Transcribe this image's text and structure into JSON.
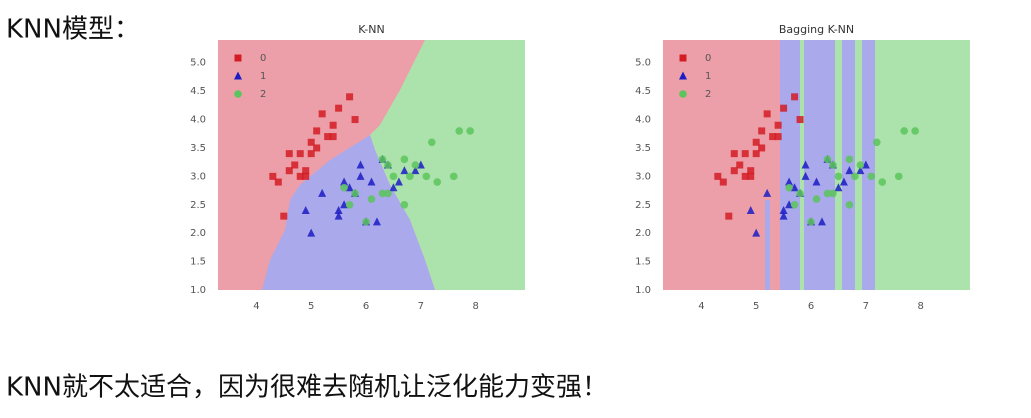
{
  "heading": "KNN模型：",
  "conclusion": "KNN就不太适合，因为很难去随机让泛化能力变强！",
  "chart_data": [
    {
      "type": "scatter",
      "title": "K-NN",
      "legend": "upper left",
      "xlim": [
        3.3,
        8.9
      ],
      "ylim": [
        1.0,
        5.4
      ],
      "xticks": [
        4,
        5,
        6,
        7,
        8
      ],
      "yticks": [
        {
          "value": 1,
          "label": "1.0"
        },
        {
          "value": 1.5,
          "label": "1.5"
        },
        {
          "value": 2,
          "label": "2.0"
        },
        {
          "value": 2.5,
          "label": "2.5"
        },
        {
          "value": 3,
          "label": "3.0"
        },
        {
          "value": 3.5,
          "label": "3.5"
        },
        {
          "value": 4,
          "label": "4.0"
        },
        {
          "value": 4.5,
          "label": "4.5"
        },
        {
          "value": 5,
          "label": "5.0"
        }
      ],
      "series": [
        {
          "name": "0",
          "color": "#d41c24",
          "x": [
            5.1,
            4.9,
            4.7,
            4.6,
            5.0,
            5.4,
            4.6,
            5.0,
            4.4,
            4.9,
            5.4,
            4.8,
            4.8,
            4.3,
            5.8,
            5.7,
            5.2,
            5.5,
            4.5,
            5.3,
            5.1
          ],
          "values": [
            3.5,
            3.0,
            3.2,
            3.1,
            3.6,
            3.9,
            3.4,
            3.4,
            2.9,
            3.1,
            3.7,
            3.4,
            3.0,
            3.0,
            4.0,
            4.4,
            4.1,
            4.2,
            2.3,
            3.7,
            3.8
          ]
        },
        {
          "name": "1",
          "color": "#1c1cc4",
          "x": [
            7.0,
            6.4,
            6.9,
            5.5,
            6.5,
            5.7,
            6.3,
            4.9,
            6.6,
            5.2,
            5.0,
            5.9,
            6.0,
            6.1,
            5.6,
            6.7,
            5.8,
            6.2,
            5.6,
            5.9,
            5.5
          ],
          "values": [
            3.2,
            3.2,
            3.1,
            2.3,
            2.8,
            2.8,
            3.3,
            2.4,
            2.9,
            2.7,
            2.0,
            3.0,
            2.2,
            2.9,
            2.9,
            3.1,
            2.7,
            2.2,
            2.5,
            3.2,
            2.4
          ]
        },
        {
          "name": "2",
          "color": "#5cc45c",
          "x": [
            6.3,
            5.8,
            7.1,
            6.5,
            7.6,
            7.3,
            6.7,
            7.2,
            6.4,
            6.8,
            5.7,
            6.4,
            7.7,
            6.0,
            6.9,
            5.6,
            6.3,
            6.7,
            7.9,
            6.1
          ],
          "values": [
            3.3,
            2.7,
            3.0,
            3.0,
            3.0,
            2.9,
            2.5,
            3.6,
            2.7,
            3.0,
            2.5,
            3.2,
            3.8,
            2.2,
            3.2,
            2.8,
            2.7,
            3.3,
            3.8,
            2.6
          ]
        }
      ]
    },
    {
      "type": "scatter",
      "title": "Bagging K-NN",
      "legend": "upper left",
      "xlim": [
        3.3,
        8.9
      ],
      "ylim": [
        1.0,
        5.4
      ],
      "xticks": [
        4,
        5,
        6,
        7,
        8
      ],
      "yticks": [
        {
          "value": 1,
          "label": "1.0"
        },
        {
          "value": 1.5,
          "label": "1.5"
        },
        {
          "value": 2,
          "label": "2.0"
        },
        {
          "value": 2.5,
          "label": "2.5"
        },
        {
          "value": 3,
          "label": "3.0"
        },
        {
          "value": 3.5,
          "label": "3.5"
        },
        {
          "value": 4,
          "label": "4.0"
        },
        {
          "value": 4.5,
          "label": "4.5"
        },
        {
          "value": 5,
          "label": "5.0"
        }
      ],
      "series": [
        {
          "name": "0",
          "color": "#d41c24",
          "x": [
            5.1,
            4.9,
            4.7,
            4.6,
            5.0,
            5.4,
            4.6,
            5.0,
            4.4,
            4.9,
            5.4,
            4.8,
            4.8,
            4.3,
            5.8,
            5.7,
            5.2,
            5.5,
            4.5,
            5.3,
            5.1
          ],
          "values": [
            3.5,
            3.0,
            3.2,
            3.1,
            3.6,
            3.9,
            3.4,
            3.4,
            2.9,
            3.1,
            3.7,
            3.4,
            3.0,
            3.0,
            4.0,
            4.4,
            4.1,
            4.2,
            2.3,
            3.7,
            3.8
          ]
        },
        {
          "name": "1",
          "color": "#1c1cc4",
          "x": [
            7.0,
            6.4,
            6.9,
            5.5,
            6.5,
            5.7,
            6.3,
            4.9,
            6.6,
            5.2,
            5.0,
            5.9,
            6.0,
            6.1,
            5.6,
            6.7,
            5.8,
            6.2,
            5.6,
            5.9,
            5.5
          ],
          "values": [
            3.2,
            3.2,
            3.1,
            2.3,
            2.8,
            2.8,
            3.3,
            2.4,
            2.9,
            2.7,
            2.0,
            3.0,
            2.2,
            2.9,
            2.9,
            3.1,
            2.7,
            2.2,
            2.5,
            3.2,
            2.4
          ]
        },
        {
          "name": "2",
          "color": "#5cc45c",
          "x": [
            6.3,
            5.8,
            7.1,
            6.5,
            7.6,
            7.3,
            6.7,
            7.2,
            6.4,
            6.8,
            5.7,
            6.4,
            7.7,
            6.0,
            6.9,
            5.6,
            6.3,
            6.7,
            7.9,
            6.1
          ],
          "values": [
            3.3,
            2.7,
            3.0,
            3.0,
            3.0,
            2.9,
            2.5,
            3.6,
            2.7,
            3.0,
            2.5,
            3.2,
            3.8,
            2.2,
            3.2,
            2.8,
            2.7,
            3.3,
            3.8,
            2.6
          ]
        }
      ]
    }
  ]
}
